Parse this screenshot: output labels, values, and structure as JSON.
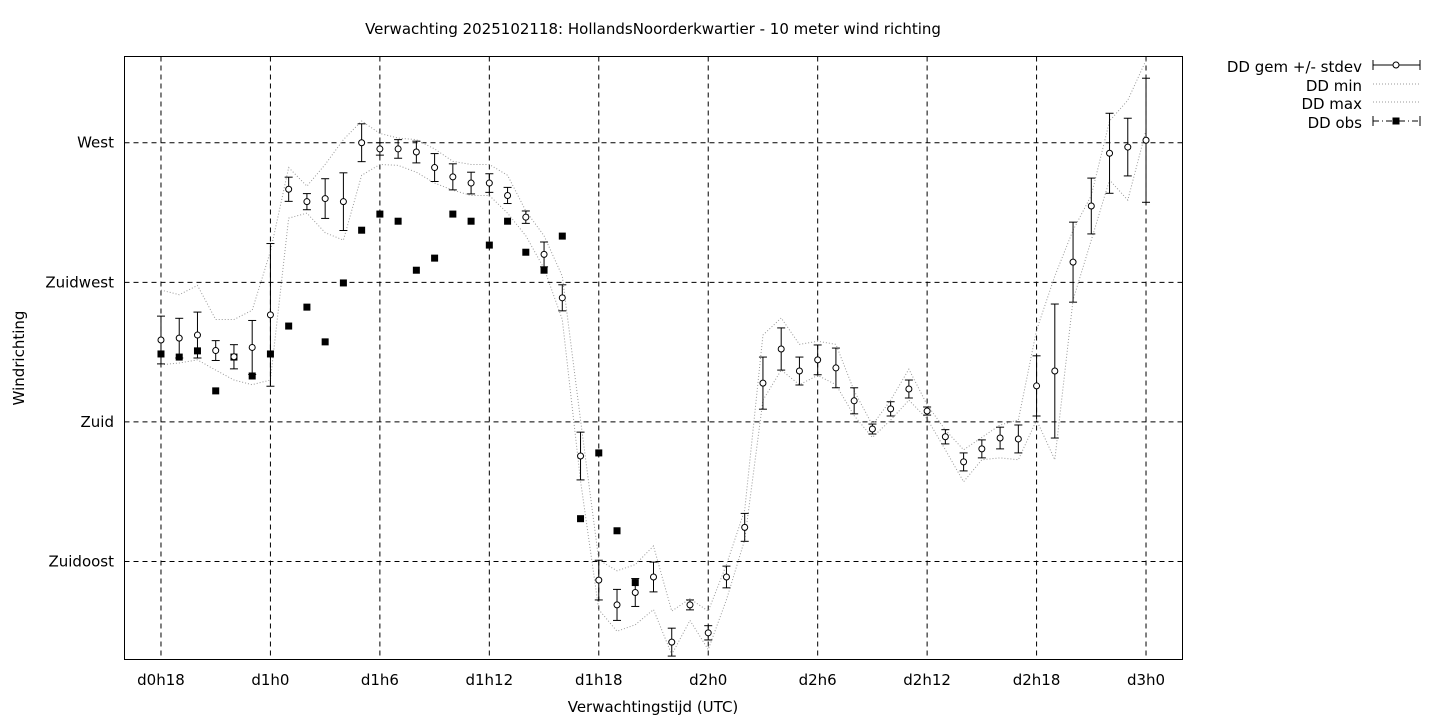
{
  "chart_data": {
    "type": "line",
    "title": "Verwachting 2025102118: HollandsNoorderkwartier - 10 meter wind richting",
    "xlabel": "Verwachtingstijd (UTC)",
    "ylabel": "Windrichting",
    "xlim": [
      -2,
      56
    ],
    "ylim": [
      103.4,
      297.8
    ],
    "x_unit": "hours since d0h18",
    "x_ticks": [
      {
        "value": 0,
        "label": "d0h18"
      },
      {
        "value": 6,
        "label": "d1h0"
      },
      {
        "value": 12,
        "label": "d1h6"
      },
      {
        "value": 18,
        "label": "d1h12"
      },
      {
        "value": 24,
        "label": "d1h18"
      },
      {
        "value": 30,
        "label": "d2h0"
      },
      {
        "value": 36,
        "label": "d2h6"
      },
      {
        "value": 42,
        "label": "d2h12"
      },
      {
        "value": 48,
        "label": "d2h18"
      },
      {
        "value": 54,
        "label": "d3h0"
      }
    ],
    "y_ticks": [
      {
        "value": 135,
        "label": "Zuidoost"
      },
      {
        "value": 180,
        "label": "Zuid"
      },
      {
        "value": 225,
        "label": "Zuidwest"
      },
      {
        "value": 270,
        "label": "West"
      }
    ],
    "grid": true,
    "legend_position": "outside-top-right",
    "legend": [
      "DD gem +/- stdev",
      "DD min",
      "DD max",
      "DD obs"
    ],
    "series": [
      {
        "name": "DD gem +/- stdev",
        "style": "errorbars",
        "values": [
          206.4,
          207,
          208,
          203,
          201,
          204,
          214.5,
          255,
          251,
          252,
          251,
          270,
          268,
          268,
          267,
          262,
          259,
          257,
          257,
          253,
          246,
          234,
          220,
          169,
          129,
          121,
          125,
          130,
          109,
          121,
          112,
          130,
          146,
          192.5,
          203.5,
          196.4,
          200,
          197.4,
          186.8,
          177.7,
          184.2,
          190.6,
          183.5,
          175.2,
          167.1,
          171.3,
          174.8,
          174.5,
          191.6,
          196.4,
          231.5,
          249.6,
          266.6,
          268.6,
          270.8
        ],
        "stdev": [
          7.7,
          6.4,
          7.4,
          3.2,
          3.9,
          8.7,
          23,
          3.9,
          2.6,
          6.4,
          9.3,
          6.1,
          2,
          3,
          3.5,
          4.5,
          4.2,
          3.5,
          3,
          2.6,
          2,
          4,
          4.2,
          7.7,
          6.4,
          5,
          4.5,
          4.8,
          4.5,
          1.6,
          2.3,
          3.5,
          4.5,
          8.4,
          6.8,
          4.5,
          4.8,
          6.4,
          4.2,
          1.6,
          2.3,
          2.9,
          1.3,
          2.3,
          2.9,
          2.9,
          3.5,
          4.5,
          9.7,
          21.6,
          12.9,
          9,
          12.9,
          9.3,
          20
        ]
      },
      {
        "name": "DD min",
        "style": "dotted",
        "values": [
          198.4,
          199,
          200,
          196.7,
          193.5,
          192,
          193.5,
          245.7,
          247.3,
          241,
          238.6,
          259.5,
          263,
          262.7,
          260.5,
          257,
          254.7,
          253,
          253,
          247.3,
          240,
          229.5,
          213,
          161,
          119.5,
          112.5,
          114.6,
          119.5,
          105,
          116,
          106.6,
          122.7,
          142,
          187,
          196.7,
          192,
          195,
          192,
          182,
          175,
          180.6,
          187,
          181,
          171,
          160.7,
          167.8,
          168.4,
          167.8,
          180.6,
          167.8,
          219.3,
          238.6,
          258,
          251.5,
          274
        ]
      },
      {
        "name": "DD max",
        "style": "dotted",
        "values": [
          222.5,
          221,
          224,
          213,
          213,
          216,
          235,
          262,
          256,
          263,
          271,
          277,
          273,
          271.5,
          271,
          268,
          264,
          263,
          263,
          259.5,
          248,
          240,
          227,
          180.6,
          135.5,
          132,
          134,
          140,
          119,
          123,
          119,
          134,
          151.6,
          208,
          213.5,
          205,
          206,
          205,
          190,
          179,
          187,
          197,
          185.5,
          177.4,
          171,
          175,
          179,
          180.6,
          209.6,
          227,
          241.8,
          253,
          277,
          283.7,
          296.6
        ]
      },
      {
        "name": "DD obs",
        "style": "squares",
        "values": [
          201.9,
          200.9,
          202.9,
          190,
          200.9,
          194.8,
          201.9,
          210.9,
          217,
          205.8,
          224.8,
          241.8,
          247,
          244.7,
          228.9,
          232.8,
          247,
          244.7,
          237,
          244.7,
          234.7,
          228.9,
          239.9,
          148.8,
          170,
          144.9,
          128.2
        ]
      }
    ]
  }
}
